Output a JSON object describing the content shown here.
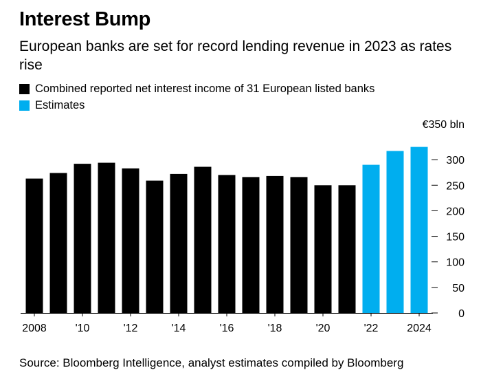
{
  "title": "Interest Bump",
  "subtitle": "European banks are set for record lending revenue in 2023 as rates rise",
  "legend": [
    {
      "label": "Combined reported net interest income of 31 European listed banks",
      "color": "#000000"
    },
    {
      "label": "Estimates",
      "color": "#00aeef"
    }
  ],
  "source": "Source: Bloomberg Intelligence, analyst estimates compiled by Bloomberg",
  "chart_data": {
    "type": "bar",
    "ylabel": "€350 bln",
    "ylim": [
      0,
      350
    ],
    "yticks": [
      {
        "value": 0,
        "label": "0"
      },
      {
        "value": 50,
        "label": "50"
      },
      {
        "value": 100,
        "label": "100"
      },
      {
        "value": 150,
        "label": "150"
      },
      {
        "value": 200,
        "label": "200"
      },
      {
        "value": 250,
        "label": "250"
      },
      {
        "value": 300,
        "label": "300"
      }
    ],
    "categories": [
      "2008",
      "2009",
      "2010",
      "2011",
      "2012",
      "2013",
      "2014",
      "2015",
      "2016",
      "2017",
      "2018",
      "2019",
      "2020",
      "2021",
      "2022",
      "2023",
      "2024"
    ],
    "xtick_labels": [
      "2008",
      "",
      "'10",
      "",
      "'12",
      "",
      "'14",
      "",
      "'16",
      "",
      "'18",
      "",
      "'20",
      "",
      "'22",
      "",
      "2024"
    ],
    "values": [
      263,
      274,
      292,
      294,
      283,
      259,
      272,
      286,
      270,
      266,
      268,
      266,
      250,
      250,
      290,
      317,
      325
    ],
    "estimate": [
      false,
      false,
      false,
      false,
      false,
      false,
      false,
      false,
      false,
      false,
      false,
      false,
      false,
      false,
      true,
      true,
      true
    ],
    "colors": {
      "reported": "#000000",
      "estimate": "#00aeef"
    },
    "grid": false,
    "legend_position": "top-left"
  }
}
